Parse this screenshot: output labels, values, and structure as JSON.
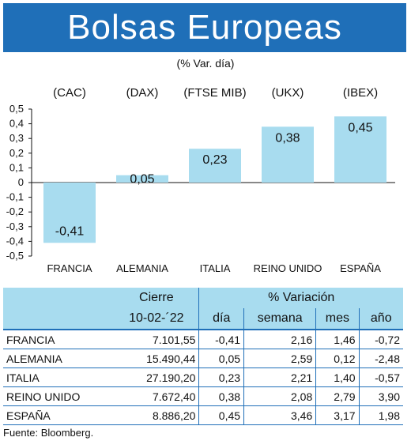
{
  "header": {
    "title": "Bolsas Europeas",
    "subtitle": "(% Var. día)"
  },
  "chart_data": {
    "type": "bar",
    "indices": [
      "(CAC)",
      "(DAX)",
      "(FTSE MIB)",
      "(UKX)",
      "(IBEX)"
    ],
    "categories": [
      "FRANCIA",
      "ALEMANIA",
      "ITALIA",
      "REINO UNIDO",
      "ESPAÑA"
    ],
    "values": [
      -0.41,
      0.05,
      0.23,
      0.38,
      0.45
    ],
    "value_labels": [
      "-0,41",
      "0,05",
      "0,23",
      "0,38",
      "0,45"
    ],
    "yticks": [
      "0,5",
      "0,4",
      "0,3",
      "0,2",
      "0,1",
      "0",
      "-0,1",
      "-0,2",
      "-0,3",
      "-0,4",
      "-0,5"
    ],
    "ylim": [
      -0.5,
      0.5
    ],
    "grid": false,
    "bar_color": "#a8dcef"
  },
  "table": {
    "group_headers": [
      "Cierre",
      "% Variación"
    ],
    "columns": [
      "10-02-´22",
      "día",
      "semana",
      "mes",
      "año"
    ],
    "rows": [
      {
        "name": "FRANCIA",
        "cierre": "7.101,55",
        "dia": "-0,41",
        "semana": "2,16",
        "mes": "1,46",
        "anio": "-0,72"
      },
      {
        "name": "ALEMANIA",
        "cierre": "15.490,44",
        "dia": "0,05",
        "semana": "2,59",
        "mes": "0,12",
        "anio": "-2,48"
      },
      {
        "name": "ITALIA",
        "cierre": "27.190,20",
        "dia": "0,23",
        "semana": "2,21",
        "mes": "1,40",
        "anio": "-0,57"
      },
      {
        "name": "REINO UNIDO",
        "cierre": "7.672,40",
        "dia": "0,38",
        "semana": "2,08",
        "mes": "2,79",
        "anio": "3,90"
      },
      {
        "name": "ESPAÑA",
        "cierre": "8.886,20",
        "dia": "0,45",
        "semana": "3,46",
        "mes": "3,17",
        "anio": "1,98"
      }
    ]
  },
  "footer": {
    "source": "Fuente: Bloomberg."
  },
  "colors": {
    "accent": "#1f6fb8",
    "bar": "#a8dcef"
  }
}
